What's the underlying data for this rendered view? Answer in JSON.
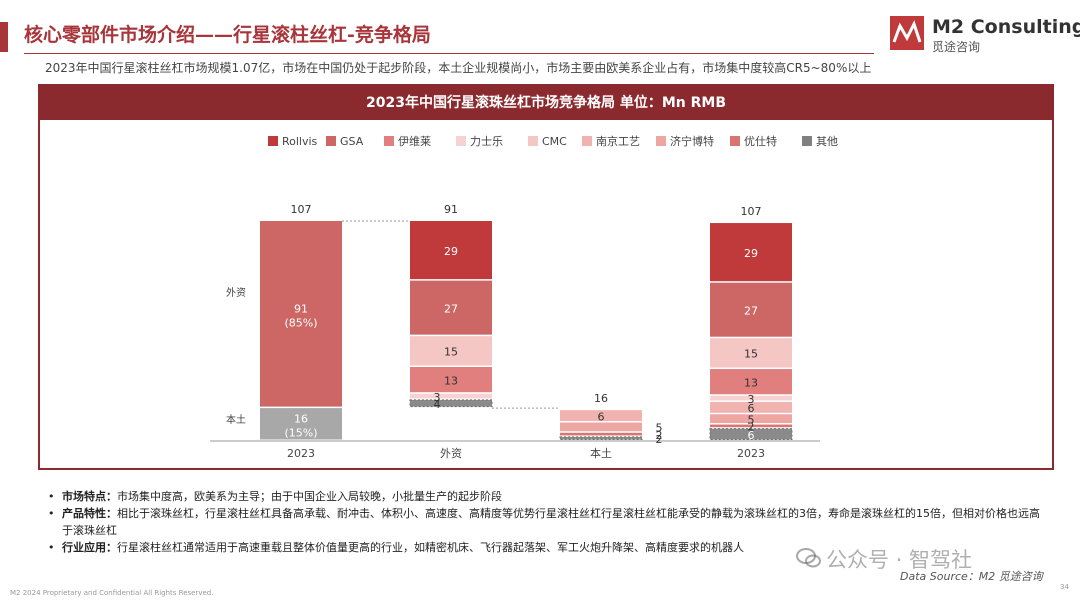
{
  "page_title": "核心零部件市场介绍——行星滚柱丝杠-竞争格局",
  "subtitle": "2023年中国行星滚柱丝杠市场规模1.07亿，市场在中国仍处于起步阶段，本土企业规模尚小，市场主要由欧美系企业占有，市场集中度较高CR5~80%以上",
  "logo": {
    "name": "M2 Consulting",
    "sub": "觅途咨询"
  },
  "colors": {
    "accent": "#a8353a",
    "header": "#8b2a2e"
  },
  "chart_data": {
    "type": "bar",
    "title": "2023年中国行星滚珠丝杠市场竞争格局 单位：Mn RMB",
    "legend": [
      {
        "name": "Rollvis",
        "color": "#c0393b"
      },
      {
        "name": "GSA",
        "color": "#cc6766"
      },
      {
        "name": "伊维莱",
        "color": "#e07f7e"
      },
      {
        "name": "力士乐",
        "color": "#f6d3d2"
      },
      {
        "name": "CMC",
        "color": "#f4c6c4"
      },
      {
        "name": "南京工艺",
        "color": "#f1b3b0"
      },
      {
        "name": "济宁博特",
        "color": "#eea6a3"
      },
      {
        "name": "优仕特",
        "color": "#d97570"
      },
      {
        "name": "其他",
        "color": "#808080"
      }
    ],
    "y_group_labels": [
      "外资",
      "本土"
    ],
    "categories": [
      "2023",
      "外资",
      "本土",
      "2023"
    ],
    "bars": [
      {
        "category": "2023",
        "total": "107",
        "segments": [
          {
            "series": "本土",
            "value": 16,
            "label": "16",
            "sublabel": "(15%)",
            "color": "#a8a8a8"
          },
          {
            "series": "外资",
            "value": 91,
            "label": "91",
            "sublabel": "(85%)",
            "color": "#cc6766"
          }
        ]
      },
      {
        "category": "外资",
        "total": "91",
        "base": 16,
        "segments": [
          {
            "series": "其他",
            "value": 4,
            "label": "4"
          },
          {
            "series": "力士乐",
            "value": 3,
            "label": "3"
          },
          {
            "series": "伊维莱",
            "value": 13,
            "label": "13"
          },
          {
            "series": "CMC",
            "value": 15,
            "label": "15"
          },
          {
            "series": "GSA",
            "value": 27,
            "label": "27"
          },
          {
            "series": "Rollvis",
            "value": 29,
            "label": "29"
          }
        ]
      },
      {
        "category": "本土",
        "total": "16",
        "segments": [
          {
            "series": "其他",
            "value": 2,
            "label": "2"
          },
          {
            "series": "优仕特",
            "value": 2,
            "label": "2"
          },
          {
            "series": "济宁博特",
            "value": 5,
            "label": "5"
          },
          {
            "series": "南京工艺",
            "value": 6,
            "label": "6"
          }
        ]
      },
      {
        "category": "2023",
        "total": "107",
        "segments": [
          {
            "series": "其他",
            "value": 6,
            "label": "6"
          },
          {
            "series": "优仕特",
            "value": 2,
            "label": "2"
          },
          {
            "series": "济宁博特",
            "value": 5,
            "label": "5"
          },
          {
            "series": "南京工艺",
            "value": 6,
            "label": "6"
          },
          {
            "series": "力士乐",
            "value": 3,
            "label": "3"
          },
          {
            "series": "伊维莱",
            "value": 13,
            "label": "13"
          },
          {
            "series": "CMC",
            "value": 15,
            "label": "15"
          },
          {
            "series": "GSA",
            "value": 27,
            "label": "27"
          },
          {
            "series": "Rollvis",
            "value": 29,
            "label": "29"
          }
        ]
      }
    ]
  },
  "notes": [
    {
      "label": "市场特点：",
      "text": "市场集中度高，欧美系为主导；由于中国企业入局较晚，小批量生产的起步阶段"
    },
    {
      "label": "产品特性：",
      "text": "相比于滚珠丝杠，行星滚柱丝杠具备高承载、耐冲击、体积小、高速度、高精度等优势行星滚柱丝杠行星滚柱丝杠能承受的静载为滚珠丝杠的3倍，寿命是滚珠丝杠的15倍，但相对价格也远高于滚珠丝杠"
    },
    {
      "label": "行业应用：",
      "text": "行星滚柱丝杠通常适用于高速重载且整体价值量更高的行业，如精密机床、飞行器起落架、军工火炮升降架、高精度要求的机器人"
    }
  ],
  "source": "Data Source：M2 觅途咨询",
  "footer": "M2 2024 Proprietary and Confidential All Rights Reserved.",
  "page_number": "34",
  "watermark": "公众号 · 智驾社"
}
